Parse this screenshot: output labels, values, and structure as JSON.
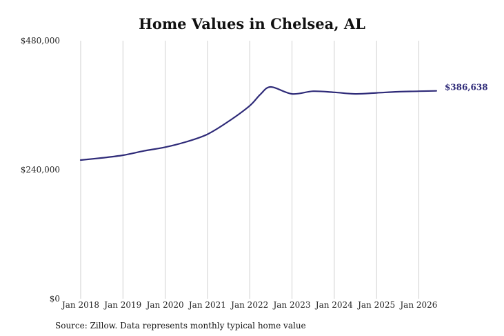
{
  "chart_data": {
    "type": "line",
    "title": "Home Values in Chelsea, AL",
    "source": "Source: Zillow. Data represents monthly typical home value",
    "y_ticks": [
      "$0",
      "$240,000",
      "$480,000"
    ],
    "ylim": [
      0,
      480000
    ],
    "x_ticks": [
      "Jan 2018",
      "Jan 2019",
      "Jan 2020",
      "Jan 2021",
      "Jan 2022",
      "Jan 2023",
      "Jan 2024",
      "Jan 2025",
      "Jan 2026"
    ],
    "x_tick_years": [
      2018,
      2019,
      2020,
      2021,
      2022,
      2023,
      2024,
      2025,
      2026
    ],
    "grid": "vertical",
    "line_color": "#2e2a78",
    "end_label": "$386,638",
    "series": [
      {
        "x": [
          "2018-01",
          "2018-07",
          "2019-01",
          "2019-07",
          "2020-01",
          "2020-07",
          "2021-01",
          "2021-07",
          "2022-01",
          "2022-04",
          "2022-07",
          "2023-01",
          "2023-07",
          "2024-01",
          "2024-07",
          "2025-01",
          "2025-07",
          "2026-01",
          "2026-06"
        ],
        "values": [
          258000,
          262000,
          267000,
          275000,
          282000,
          292000,
          306000,
          330000,
          359000,
          380000,
          394000,
          381000,
          386000,
          384000,
          381000,
          383000,
          385000,
          386000,
          386638
        ]
      }
    ]
  }
}
